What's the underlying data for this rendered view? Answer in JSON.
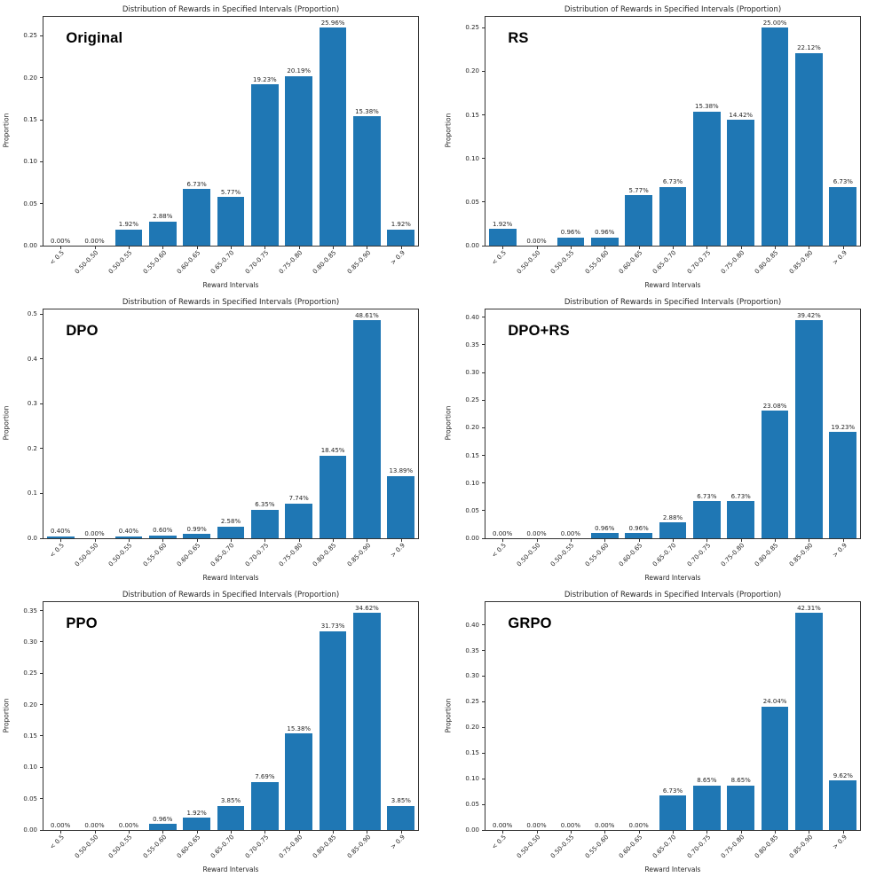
{
  "page": {
    "background": "#ffffff"
  },
  "chart_data": {
    "type": "bar",
    "title": "Distribution of Rewards in Specified Intervals (Proportion)",
    "xlabel": "Reward Intervals",
    "ylabel": "Proportion",
    "bar_color": "#1f77b4",
    "grid": "off",
    "legend": "none",
    "categories": [
      "< 0.5",
      "0.50-0.50",
      "0.50-0.55",
      "0.55-0.60",
      "0.60-0.65",
      "0.65-0.70",
      "0.70-0.75",
      "0.75-0.80",
      "0.80-0.85",
      "0.85-0.90",
      "> 0.9"
    ],
    "charts": [
      {
        "label": "Original",
        "values": [
          0.0,
          0.0,
          0.0192,
          0.0288,
          0.0673,
          0.0577,
          0.1923,
          0.2019,
          0.2596,
          0.1538,
          0.0192
        ],
        "value_labels": [
          "0.00%",
          "0.00%",
          "1.92%",
          "2.88%",
          "6.73%",
          "5.77%",
          "19.23%",
          "20.19%",
          "25.96%",
          "15.38%",
          "1.92%"
        ],
        "yticks": [
          {
            "v": 0.0,
            "t": "0.00"
          },
          {
            "v": 0.05,
            "t": "0.05"
          },
          {
            "v": 0.1,
            "t": "0.10"
          },
          {
            "v": 0.15,
            "t": "0.15"
          },
          {
            "v": 0.2,
            "t": "0.20"
          },
          {
            "v": 0.25,
            "t": "0.25"
          }
        ],
        "ylim": [
          0,
          0.27258
        ]
      },
      {
        "label": "RS",
        "values": [
          0.0192,
          0.0,
          0.0096,
          0.0096,
          0.0577,
          0.0673,
          0.1538,
          0.1442,
          0.25,
          0.2212,
          0.0673
        ],
        "value_labels": [
          "1.92%",
          "0.00%",
          "0.96%",
          "0.96%",
          "5.77%",
          "6.73%",
          "15.38%",
          "14.42%",
          "25.00%",
          "22.12%",
          "6.73%"
        ],
        "yticks": [
          {
            "v": 0.0,
            "t": "0.00"
          },
          {
            "v": 0.05,
            "t": "0.05"
          },
          {
            "v": 0.1,
            "t": "0.10"
          },
          {
            "v": 0.15,
            "t": "0.15"
          },
          {
            "v": 0.2,
            "t": "0.20"
          },
          {
            "v": 0.25,
            "t": "0.25"
          }
        ],
        "ylim": [
          0,
          0.2625
        ]
      },
      {
        "label": "DPO",
        "values": [
          0.004,
          0.0,
          0.004,
          0.006,
          0.0099,
          0.0258,
          0.0635,
          0.0774,
          0.1845,
          0.4861,
          0.1389
        ],
        "value_labels": [
          "0.40%",
          "0.00%",
          "0.40%",
          "0.60%",
          "0.99%",
          "2.58%",
          "6.35%",
          "7.74%",
          "18.45%",
          "48.61%",
          "13.89%"
        ],
        "yticks": [
          {
            "v": 0.0,
            "t": "0.0"
          },
          {
            "v": 0.1,
            "t": "0.1"
          },
          {
            "v": 0.2,
            "t": "0.2"
          },
          {
            "v": 0.3,
            "t": "0.3"
          },
          {
            "v": 0.4,
            "t": "0.4"
          },
          {
            "v": 0.5,
            "t": "0.5"
          }
        ],
        "ylim": [
          0,
          0.51041
        ]
      },
      {
        "label": "DPO+RS",
        "values": [
          0.0,
          0.0,
          0.0,
          0.0096,
          0.0096,
          0.0288,
          0.0673,
          0.0673,
          0.2308,
          0.3942,
          0.1923
        ],
        "value_labels": [
          "0.00%",
          "0.00%",
          "0.00%",
          "0.96%",
          "0.96%",
          "2.88%",
          "6.73%",
          "6.73%",
          "23.08%",
          "39.42%",
          "19.23%"
        ],
        "yticks": [
          {
            "v": 0.0,
            "t": "0.00"
          },
          {
            "v": 0.05,
            "t": "0.05"
          },
          {
            "v": 0.1,
            "t": "0.10"
          },
          {
            "v": 0.15,
            "t": "0.15"
          },
          {
            "v": 0.2,
            "t": "0.20"
          },
          {
            "v": 0.25,
            "t": "0.25"
          },
          {
            "v": 0.3,
            "t": "0.30"
          },
          {
            "v": 0.35,
            "t": "0.35"
          },
          {
            "v": 0.4,
            "t": "0.40"
          }
        ],
        "ylim": [
          0,
          0.41391
        ]
      },
      {
        "label": "PPO",
        "values": [
          0.0,
          0.0,
          0.0,
          0.0096,
          0.0192,
          0.0385,
          0.0769,
          0.1538,
          0.3173,
          0.3462,
          0.0385
        ],
        "value_labels": [
          "0.00%",
          "0.00%",
          "0.00%",
          "0.96%",
          "1.92%",
          "3.85%",
          "7.69%",
          "15.38%",
          "31.73%",
          "34.62%",
          "3.85%"
        ],
        "yticks": [
          {
            "v": 0.0,
            "t": "0.00"
          },
          {
            "v": 0.05,
            "t": "0.05"
          },
          {
            "v": 0.1,
            "t": "0.10"
          },
          {
            "v": 0.15,
            "t": "0.15"
          },
          {
            "v": 0.2,
            "t": "0.20"
          },
          {
            "v": 0.25,
            "t": "0.25"
          },
          {
            "v": 0.3,
            "t": "0.30"
          },
          {
            "v": 0.35,
            "t": "0.35"
          }
        ],
        "ylim": [
          0,
          0.36351
        ]
      },
      {
        "label": "GRPO",
        "values": [
          0.0,
          0.0,
          0.0,
          0.0,
          0.0,
          0.0673,
          0.0865,
          0.0865,
          0.2404,
          0.4231,
          0.0962
        ],
        "value_labels": [
          "0.00%",
          "0.00%",
          "0.00%",
          "0.00%",
          "0.00%",
          "6.73%",
          "8.65%",
          "8.65%",
          "24.04%",
          "42.31%",
          "9.62%"
        ],
        "yticks": [
          {
            "v": 0.0,
            "t": "0.00"
          },
          {
            "v": 0.05,
            "t": "0.05"
          },
          {
            "v": 0.1,
            "t": "0.10"
          },
          {
            "v": 0.15,
            "t": "0.15"
          },
          {
            "v": 0.2,
            "t": "0.20"
          },
          {
            "v": 0.25,
            "t": "0.25"
          },
          {
            "v": 0.3,
            "t": "0.30"
          },
          {
            "v": 0.35,
            "t": "0.35"
          },
          {
            "v": 0.4,
            "t": "0.40"
          }
        ],
        "ylim": [
          0,
          0.44426
        ]
      }
    ]
  }
}
